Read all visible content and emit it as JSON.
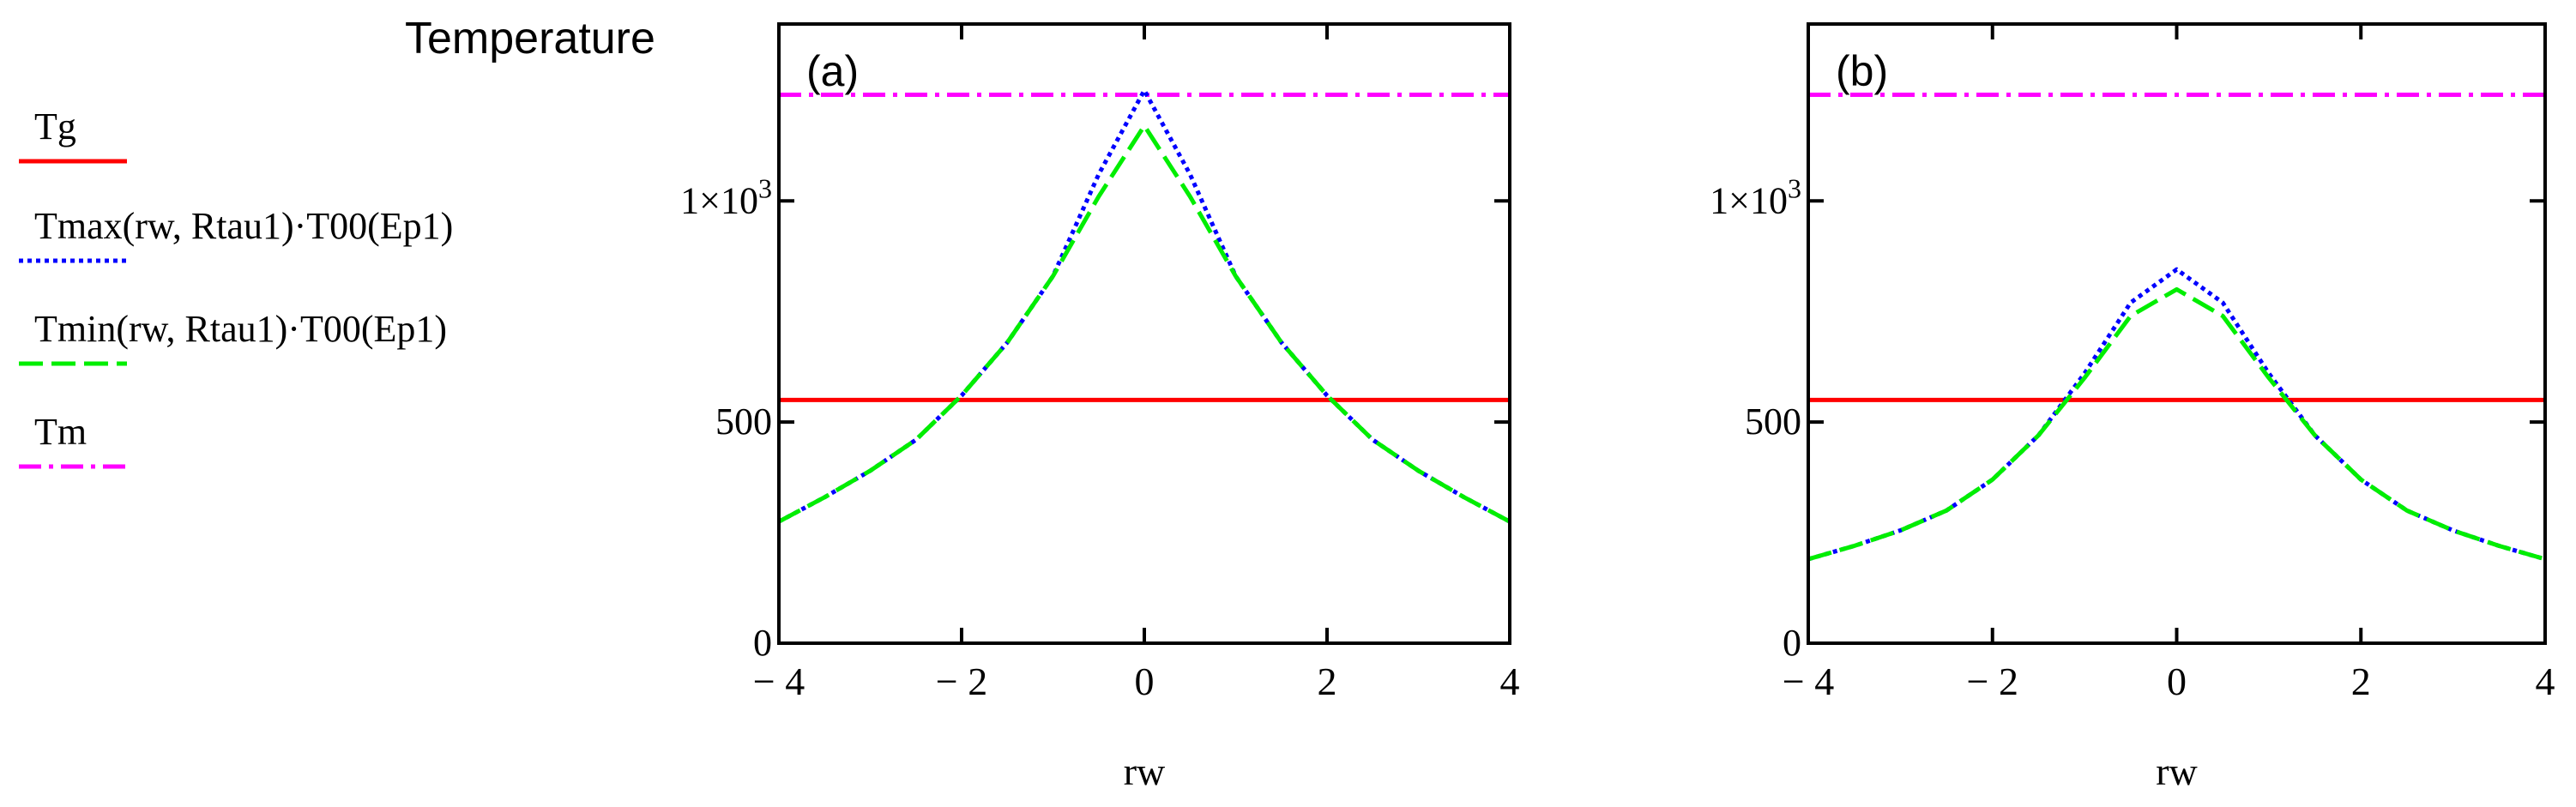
{
  "figure_title": "Temperature",
  "legend": [
    {
      "label": "Tg",
      "color": "#ff0000",
      "style": "solid"
    },
    {
      "label": "Tmax(rw, Rtau1)·T00(Ep1)",
      "color": "#0000ff",
      "style": "dotted"
    },
    {
      "label": "Tmin(rw, Rtau1)·T00(Ep1)",
      "color": "#00ee00",
      "style": "dashed"
    },
    {
      "label": "Tm",
      "color": "#ff00ff",
      "style": "dash-dot"
    }
  ],
  "chart_data": [
    {
      "type": "line",
      "panel_label": "(a)",
      "xlabel": "rw",
      "ylabel": "",
      "xlim": [
        -4,
        4
      ],
      "ylim": [
        0,
        1400
      ],
      "x_ticks": [
        {
          "value": -4,
          "label": "− 4"
        },
        {
          "value": -2,
          "label": "− 2"
        },
        {
          "value": 0,
          "label": "0"
        },
        {
          "value": 2,
          "label": "2"
        },
        {
          "value": 4,
          "label": "4"
        }
      ],
      "y_ticks": [
        {
          "value": 0,
          "label": "0"
        },
        {
          "value": 500,
          "label": "500"
        },
        {
          "value": 1000,
          "label": "1×10",
          "sup": "3"
        }
      ],
      "grid": false,
      "series": [
        {
          "name": "Tg",
          "style": "solid",
          "color": "#ff0000",
          "x": [
            -4,
            4
          ],
          "y": [
            550,
            550
          ]
        },
        {
          "name": "Tm",
          "style": "dash-dot",
          "color": "#ff00ff",
          "x": [
            -4,
            4
          ],
          "y": [
            1240,
            1240
          ]
        },
        {
          "name": "Tmax(rw, Rtau1)·T00(Ep1)",
          "style": "dotted",
          "color": "#0000ff",
          "x": [
            -4,
            -3.5,
            -3,
            -2.5,
            -2,
            -1.5,
            -1,
            -0.5,
            0,
            0.5,
            1,
            1.5,
            2,
            2.5,
            3,
            3.5,
            4
          ],
          "y": [
            275,
            330,
            390,
            460,
            560,
            680,
            830,
            1060,
            1250,
            1060,
            830,
            680,
            560,
            460,
            390,
            330,
            275
          ]
        },
        {
          "name": "Tmin(rw, Rtau1)·T00(Ep1)",
          "style": "dashed",
          "color": "#00ee00",
          "x": [
            -4,
            -3.5,
            -3,
            -2.5,
            -2,
            -1.5,
            -1,
            -0.5,
            0,
            0.5,
            1,
            1.5,
            2,
            2.5,
            3,
            3.5,
            4
          ],
          "y": [
            275,
            330,
            390,
            460,
            560,
            680,
            830,
            1010,
            1170,
            1010,
            830,
            680,
            560,
            460,
            390,
            330,
            275
          ]
        }
      ]
    },
    {
      "type": "line",
      "panel_label": "(b)",
      "xlabel": "rw",
      "ylabel": "",
      "xlim": [
        -4,
        4
      ],
      "ylim": [
        0,
        1400
      ],
      "x_ticks": [
        {
          "value": -4,
          "label": "− 4"
        },
        {
          "value": -2,
          "label": "− 2"
        },
        {
          "value": 0,
          "label": "0"
        },
        {
          "value": 2,
          "label": "2"
        },
        {
          "value": 4,
          "label": "4"
        }
      ],
      "y_ticks": [
        {
          "value": 0,
          "label": "0"
        },
        {
          "value": 500,
          "label": "500"
        },
        {
          "value": 1000,
          "label": "1×10",
          "sup": "3"
        }
      ],
      "grid": false,
      "series": [
        {
          "name": "Tg",
          "style": "solid",
          "color": "#ff0000",
          "x": [
            -4,
            4
          ],
          "y": [
            550,
            550
          ]
        },
        {
          "name": "Tm",
          "style": "dash-dot",
          "color": "#ff00ff",
          "x": [
            -4,
            4
          ],
          "y": [
            1240,
            1240
          ]
        },
        {
          "name": "Tmax(rw, Rtau1)·T00(Ep1)",
          "style": "dotted",
          "color": "#0000ff",
          "x": [
            -4,
            -3.5,
            -3,
            -2.5,
            -2,
            -1.5,
            -1,
            -0.5,
            0,
            0.5,
            1,
            1.5,
            2,
            2.5,
            3,
            3.5,
            4
          ],
          "y": [
            190,
            220,
            255,
            300,
            370,
            470,
            610,
            770,
            845,
            770,
            610,
            470,
            370,
            300,
            255,
            220,
            190
          ]
        },
        {
          "name": "Tmin(rw, Rtau1)·T00(Ep1)",
          "style": "dashed",
          "color": "#00ee00",
          "x": [
            -4,
            -3.5,
            -3,
            -2.5,
            -2,
            -1.5,
            -1,
            -0.5,
            0,
            0.5,
            1,
            1.5,
            2,
            2.5,
            3,
            3.5,
            4
          ],
          "y": [
            190,
            220,
            255,
            300,
            370,
            470,
            600,
            740,
            800,
            740,
            600,
            470,
            370,
            300,
            255,
            220,
            190
          ]
        }
      ]
    }
  ]
}
